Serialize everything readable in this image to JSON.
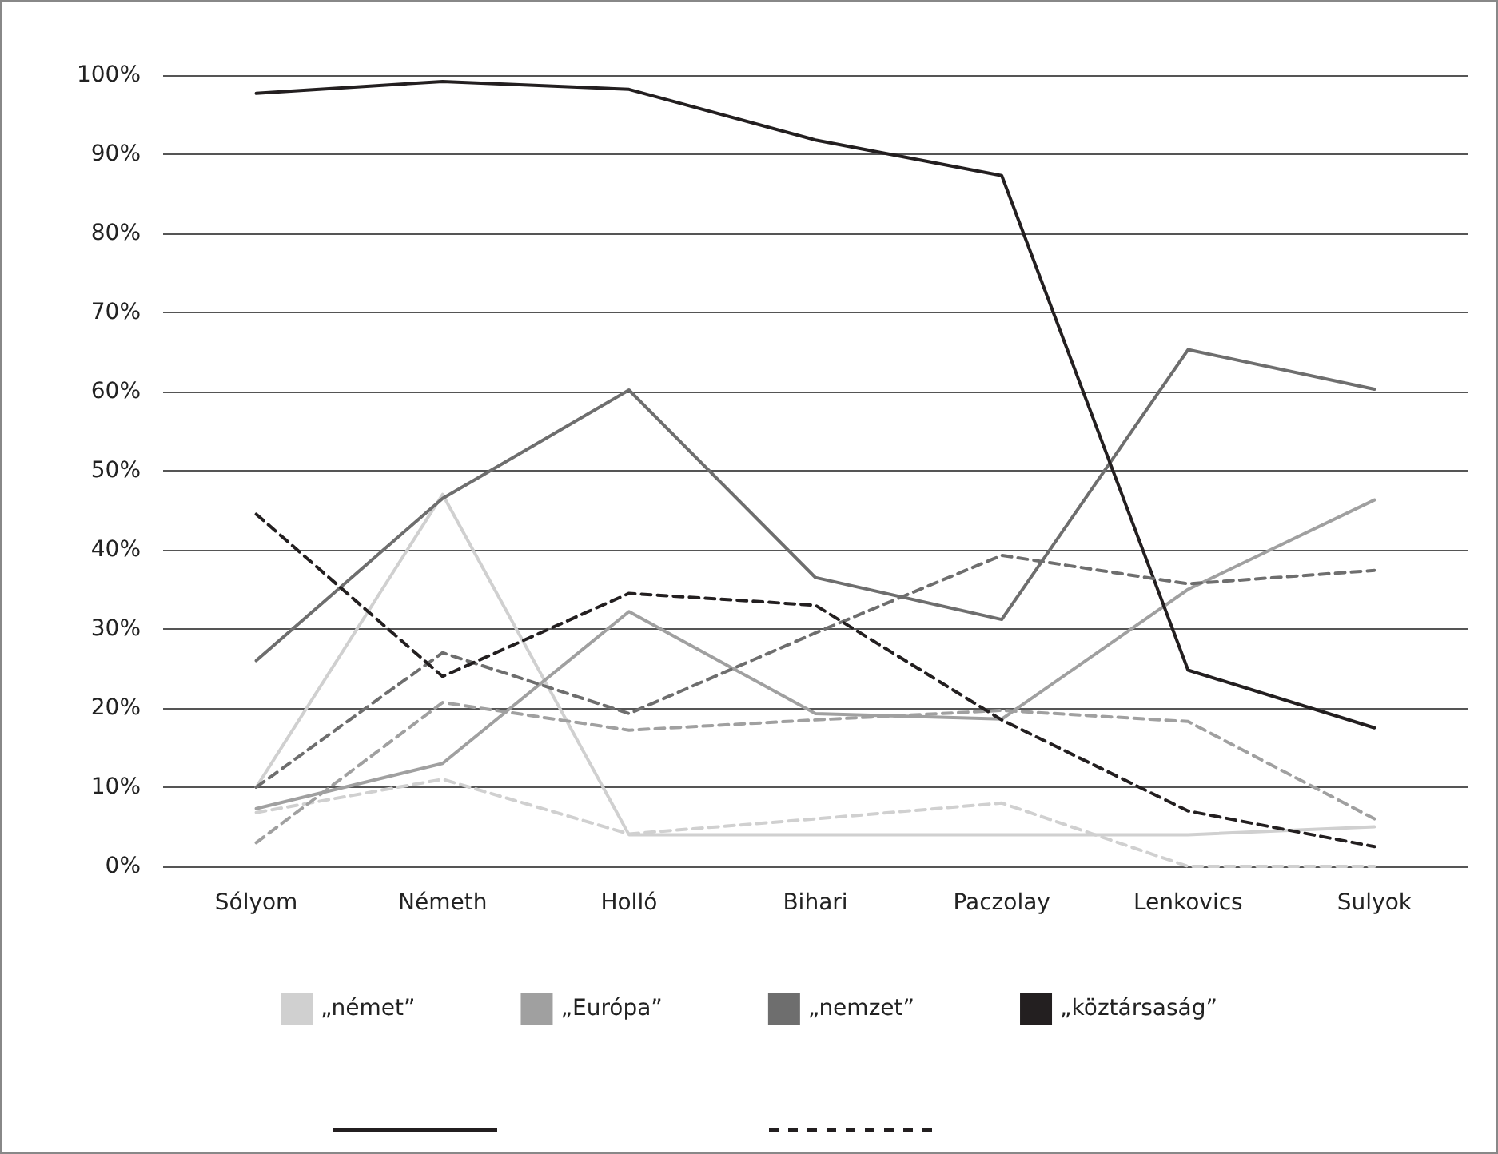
{
  "chart_data": {
    "type": "line",
    "categories": [
      "Sólyom",
      "Németh",
      "Holló",
      "Bihari",
      "Paczolay",
      "Lenkovics",
      "Sulyok"
    ],
    "series": [
      {
        "name": "„német”",
        "color": "#d0d0d0",
        "line_style": "solid",
        "values": [
          10,
          47,
          4,
          4,
          4,
          4,
          5
        ]
      },
      {
        "name": "„Európa”",
        "color": "#a0a0a0",
        "line_style": "solid",
        "values": [
          7.3,
          13,
          32.2,
          19.3,
          18.6,
          35,
          46.3
        ]
      },
      {
        "name": "„nemzet”",
        "color": "#6e6e6e",
        "line_style": "solid",
        "values": [
          26,
          46.5,
          60.2,
          36.5,
          31.2,
          65.3,
          60.3
        ]
      },
      {
        "name": "„köztársaság”",
        "color": "#231f20",
        "line_style": "solid",
        "values": [
          97.7,
          99.2,
          98.2,
          91.8,
          87.3,
          24.8,
          17.5
        ]
      },
      {
        "color": "#d0d0d0",
        "line_style": "dashed",
        "values": [
          6.8,
          11,
          4.1,
          6,
          8,
          0,
          0
        ]
      },
      {
        "color": "#a0a0a0",
        "line_style": "dashed",
        "values": [
          3,
          20.7,
          17.2,
          18.5,
          19.7,
          18.3,
          6
        ]
      },
      {
        "color": "#6e6e6e",
        "line_style": "dashed",
        "values": [
          10,
          27,
          19.3,
          29.5,
          39.3,
          35.7,
          37.4
        ]
      },
      {
        "color": "#231f20",
        "line_style": "dashed",
        "values": [
          44.5,
          24,
          34.5,
          33,
          18.5,
          7,
          2.5
        ]
      }
    ],
    "ylim": [
      0,
      100
    ],
    "yticks": [
      {
        "value": 0,
        "label": "0%"
      },
      {
        "value": 10,
        "label": "10%"
      },
      {
        "value": 20,
        "label": "20%"
      },
      {
        "value": 30,
        "label": "30%"
      },
      {
        "value": 40,
        "label": "40%"
      },
      {
        "value": 50,
        "label": "50%"
      },
      {
        "value": 60,
        "label": "60%"
      },
      {
        "value": 70,
        "label": "70%"
      },
      {
        "value": 80,
        "label": "80%"
      },
      {
        "value": 90,
        "label": "90%"
      },
      {
        "value": 100,
        "label": "100%"
      }
    ],
    "grid": "y",
    "legend": "bottom",
    "marker": "none"
  }
}
